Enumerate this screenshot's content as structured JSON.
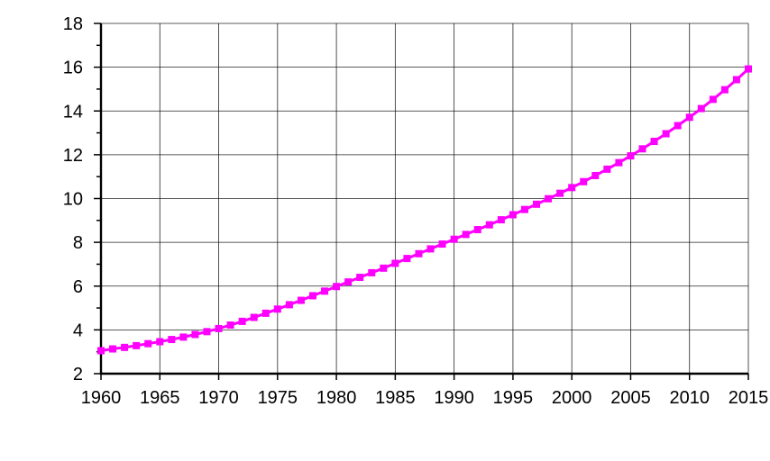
{
  "chart_data": {
    "type": "line",
    "title": "",
    "xlabel": "",
    "ylabel": "",
    "xlim": [
      1960,
      2015
    ],
    "ylim": [
      2,
      18
    ],
    "x_ticks": [
      1960,
      1965,
      1970,
      1975,
      1980,
      1985,
      1990,
      1995,
      2000,
      2005,
      2010,
      2015
    ],
    "y_ticks": [
      2,
      4,
      6,
      8,
      10,
      12,
      14,
      16,
      18
    ],
    "grid": true,
    "legend": "none",
    "series": [
      {
        "color": "#ff00ff",
        "marker": "square",
        "x": [
          1960,
          1961,
          1962,
          1963,
          1964,
          1965,
          1966,
          1967,
          1968,
          1969,
          1970,
          1971,
          1972,
          1973,
          1974,
          1975,
          1976,
          1977,
          1978,
          1979,
          1980,
          1981,
          1982,
          1983,
          1984,
          1985,
          1986,
          1987,
          1988,
          1989,
          1990,
          1991,
          1992,
          1993,
          1994,
          1995,
          1996,
          1997,
          1998,
          1999,
          2000,
          2001,
          2002,
          2003,
          2004,
          2005,
          2006,
          2007,
          2008,
          2009,
          2010,
          2011,
          2012,
          2013,
          2014,
          2015
        ],
        "y": [
          3.05,
          3.13,
          3.2,
          3.28,
          3.37,
          3.46,
          3.56,
          3.67,
          3.79,
          3.92,
          4.06,
          4.22,
          4.39,
          4.57,
          4.76,
          4.95,
          5.15,
          5.35,
          5.56,
          5.77,
          5.98,
          6.19,
          6.4,
          6.61,
          6.82,
          7.04,
          7.26,
          7.48,
          7.7,
          7.92,
          8.14,
          8.36,
          8.58,
          8.8,
          9.03,
          9.26,
          9.5,
          9.74,
          9.99,
          10.24,
          10.5,
          10.77,
          11.05,
          11.34,
          11.64,
          11.95,
          12.27,
          12.61,
          12.96,
          13.33,
          13.71,
          14.11,
          14.53,
          14.97,
          15.43,
          15.92
        ]
      }
    ]
  }
}
